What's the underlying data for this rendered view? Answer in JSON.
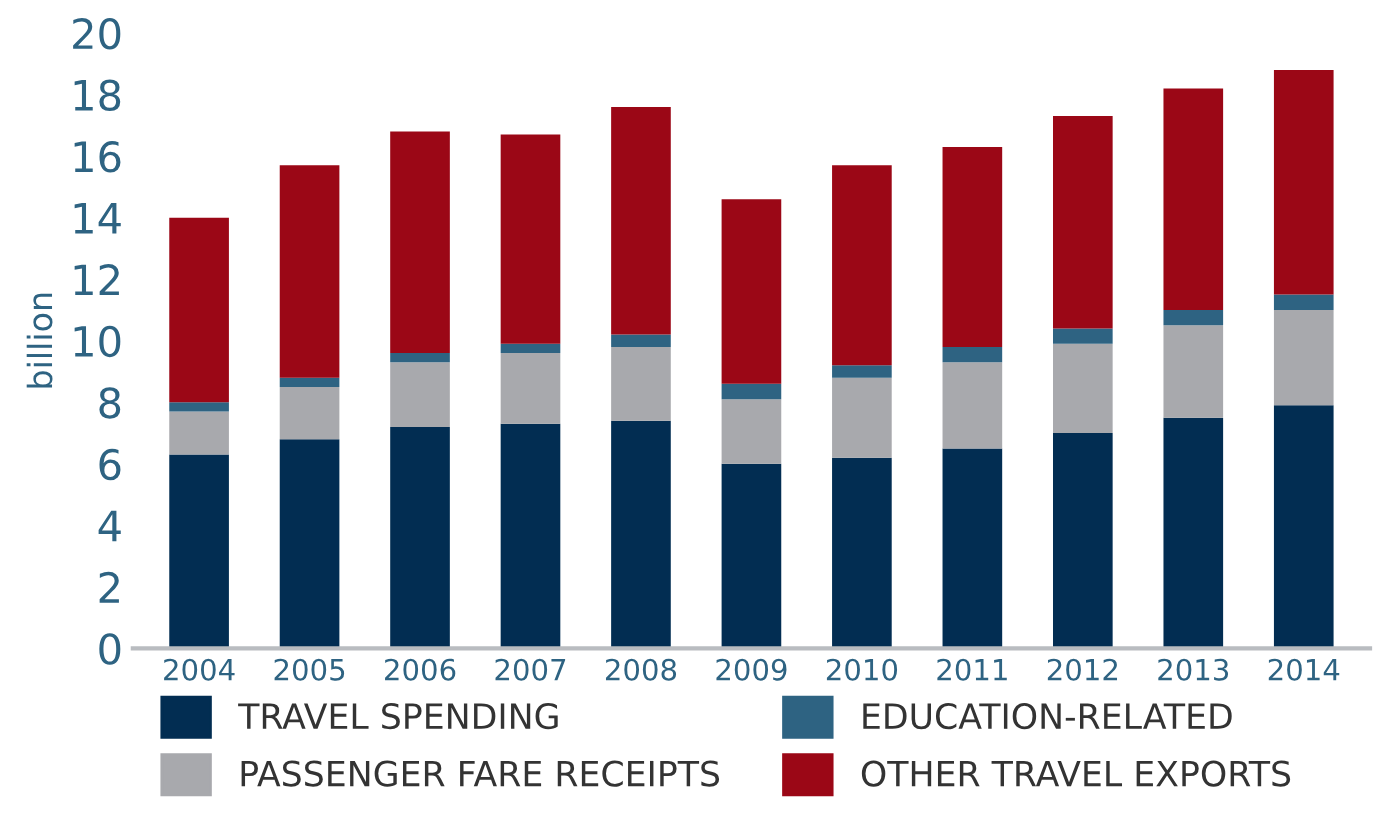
{
  "chart_data": {
    "type": "bar",
    "stacked": true,
    "ylabel": "billion",
    "categories": [
      "2004",
      "2005",
      "2006",
      "2007",
      "2008",
      "2009",
      "2010",
      "2011",
      "2012",
      "2013",
      "2014"
    ],
    "series": [
      {
        "name": "TRAVEL SPENDING",
        "color": "#022d52",
        "values": [
          6.3,
          6.8,
          7.2,
          7.3,
          7.4,
          6.0,
          6.2,
          6.5,
          7.0,
          7.5,
          7.9
        ]
      },
      {
        "name": "PASSENGER FARE RECEIPTS",
        "color": "#a8a9ad",
        "values": [
          1.4,
          1.7,
          2.1,
          2.3,
          2.4,
          2.1,
          2.6,
          2.8,
          2.9,
          3.0,
          3.1
        ]
      },
      {
        "name": "EDUCATION-RELATED",
        "color": "#2e6382",
        "values": [
          0.3,
          0.3,
          0.3,
          0.3,
          0.4,
          0.5,
          0.4,
          0.5,
          0.5,
          0.5,
          0.5
        ]
      },
      {
        "name": "OTHER TRAVEL EXPORTS",
        "color": "#9b0716",
        "values": [
          6.0,
          6.9,
          7.2,
          6.8,
          7.4,
          6.0,
          6.5,
          6.5,
          6.9,
          7.2,
          7.3
        ]
      }
    ],
    "ylim": [
      0,
      20
    ],
    "yticks": [
      0,
      2,
      4,
      6,
      8,
      10,
      12,
      14,
      16,
      18,
      20
    ],
    "grid": false,
    "legend": "bottom"
  }
}
